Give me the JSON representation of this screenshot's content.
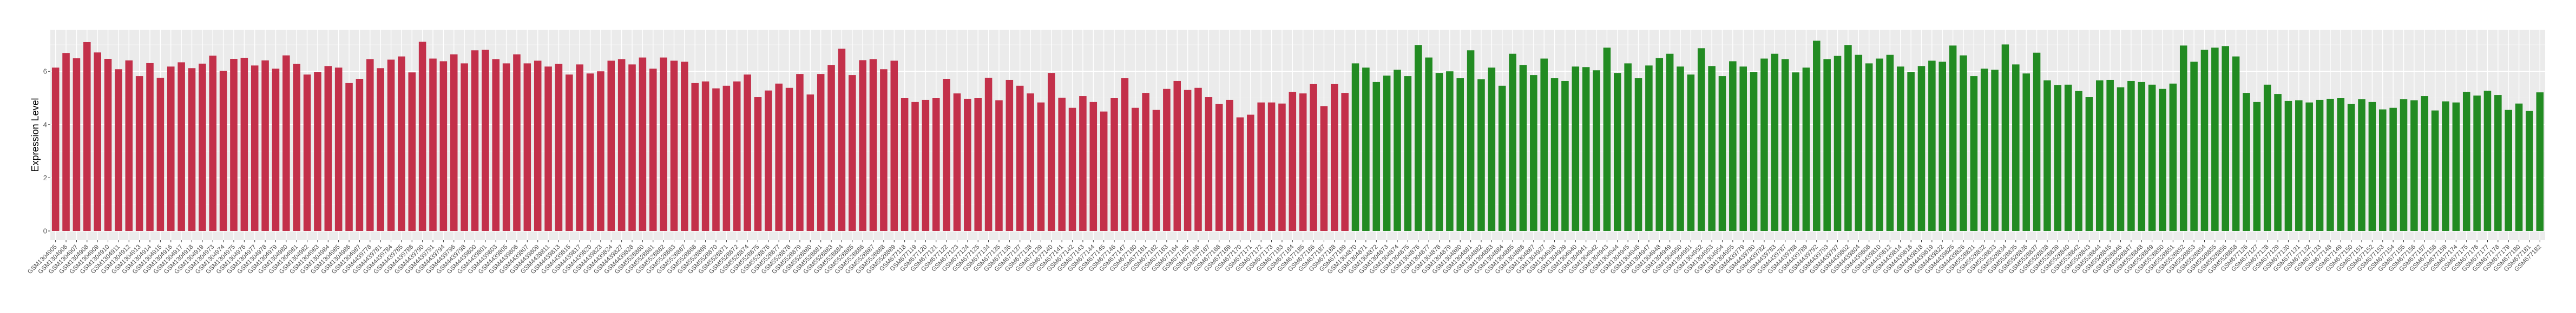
{
  "chart_data": {
    "type": "bar",
    "title": "",
    "xlabel": "",
    "ylabel": "Expression Level",
    "ylim": [
      0,
      7.55
    ],
    "yticks": [
      0,
      2,
      4,
      6
    ],
    "grid": true,
    "panel_background": "#EBEBEB",
    "series": [
      {
        "color": "#C3304A",
        "categories": [
          "GSM1304905",
          "GSM1304906",
          "GSM1304907",
          "GSM1304908",
          "GSM1304909",
          "GSM1304910",
          "GSM1304911",
          "GSM1304912",
          "GSM1304913",
          "GSM1304914",
          "GSM1304915",
          "GSM1304916",
          "GSM1304917",
          "GSM1304918",
          "GSM1304919",
          "GSM1304973",
          "GSM1304974",
          "GSM1304975",
          "GSM1304976",
          "GSM1304977",
          "GSM1304978",
          "GSM1304979",
          "GSM1304980",
          "GSM1304981",
          "GSM1304982",
          "GSM1304983",
          "GSM1304984",
          "GSM1304985",
          "GSM1304986",
          "GSM1304987",
          "GSM4439778",
          "GSM4439781",
          "GSM4439784",
          "GSM4439785",
          "GSM4439786",
          "GSM4439790",
          "GSM4439791",
          "GSM4439794",
          "GSM4439796",
          "GSM4439798",
          "GSM4439800",
          "GSM4439801",
          "GSM4439803",
          "GSM4439805",
          "GSM4439806",
          "GSM4439807",
          "GSM4439809",
          "GSM4439811",
          "GSM4439813",
          "GSM4439815",
          "GSM4439817",
          "GSM4439820",
          "GSM4439823",
          "GSM4439824",
          "GSM4439827",
          "GSM4439828",
          "GSM5528860",
          "GSM5528861",
          "GSM5528862",
          "GSM5528863",
          "GSM5528867",
          "GSM5528868",
          "GSM5528869",
          "GSM5528870",
          "GSM5528871",
          "GSM5528872",
          "GSM5528874",
          "GSM5528875",
          "GSM5528876",
          "GSM5528877",
          "GSM5528878",
          "GSM5528879",
          "GSM5528880",
          "GSM5528881",
          "GSM5528883",
          "GSM5528884",
          "GSM5528885",
          "GSM5528886",
          "GSM5528887",
          "GSM5528888",
          "GSM5528889",
          "GSM677118",
          "GSM677119",
          "GSM677120",
          "GSM677121",
          "GSM677122",
          "GSM677123",
          "GSM677124",
          "GSM677125",
          "GSM677134",
          "GSM677135",
          "GSM677136",
          "GSM677137",
          "GSM677138",
          "GSM677139",
          "GSM677140",
          "GSM677141",
          "GSM677142",
          "GSM677143",
          "GSM677144",
          "GSM677145",
          "GSM677146",
          "GSM677147",
          "GSM677160",
          "GSM677161",
          "GSM677162",
          "GSM677163",
          "GSM677164",
          "GSM677165",
          "GSM677166",
          "GSM677167",
          "GSM677168",
          "GSM677169",
          "GSM677170",
          "GSM677171",
          "GSM677172",
          "GSM677173",
          "GSM677183",
          "GSM677184",
          "GSM677185",
          "GSM677186",
          "GSM677187",
          "GSM677188",
          "GSM677189"
        ],
        "values": [
          6.14,
          6.69,
          6.49,
          7.1,
          6.71,
          6.47,
          6.08,
          6.41,
          5.82,
          6.31,
          5.76,
          6.18,
          6.34,
          6.12,
          6.29,
          6.59,
          6.02,
          6.47,
          6.51,
          6.22,
          6.41,
          6.1,
          6.6,
          6.28,
          5.88,
          5.98,
          6.2,
          6.14,
          5.56,
          5.72,
          6.46,
          6.12,
          6.44,
          6.56,
          5.96,
          7.11,
          6.48,
          6.38,
          6.64,
          6.3,
          6.79,
          6.81,
          6.46,
          6.3,
          6.64,
          6.3,
          6.4,
          6.18,
          6.28,
          5.88,
          6.26,
          5.92,
          6.0,
          6.4,
          6.46,
          6.26,
          6.52,
          6.1,
          6.52,
          6.4,
          6.36,
          5.56,
          5.62,
          5.36,
          5.46,
          5.62,
          5.88,
          5.03,
          5.28,
          5.54,
          5.38,
          5.9,
          5.13,
          5.9,
          6.24,
          6.85,
          5.86,
          6.42,
          6.46,
          6.08,
          6.4,
          4.99,
          4.85,
          4.93,
          4.99,
          5.72,
          5.17,
          4.97,
          4.99,
          5.76,
          4.91,
          5.68,
          5.46,
          5.17,
          4.83,
          5.94,
          5.01,
          4.63,
          5.07,
          4.85,
          4.49,
          4.99,
          5.74,
          4.63,
          5.19,
          4.55,
          5.34,
          5.64,
          5.3,
          5.38,
          5.03,
          4.77,
          4.93,
          4.27,
          4.37,
          4.83,
          4.83,
          4.79,
          5.23,
          5.17,
          5.52,
          4.69,
          5.52,
          5.19
        ]
      },
      {
        "color": "#228B22",
        "categories": [
          "GSM1304870",
          "GSM1304871",
          "GSM1304872",
          "GSM1304873",
          "GSM1304874",
          "GSM1304875",
          "GSM1304876",
          "GSM1304877",
          "GSM1304878",
          "GSM1304879",
          "GSM1304880",
          "GSM1304881",
          "GSM1304882",
          "GSM1304883",
          "GSM1304884",
          "GSM1304885",
          "GSM1304886",
          "GSM1304887",
          "GSM1304937",
          "GSM1304938",
          "GSM1304939",
          "GSM1304940",
          "GSM1304941",
          "GSM1304942",
          "GSM1304943",
          "GSM1304944",
          "GSM1304945",
          "GSM1304946",
          "GSM1304947",
          "GSM1304948",
          "GSM1304949",
          "GSM1304950",
          "GSM1304951",
          "GSM1304952",
          "GSM1304953",
          "GSM1304954",
          "GSM1304955",
          "GSM4439779",
          "GSM4439780",
          "GSM4439782",
          "GSM4439783",
          "GSM4439787",
          "GSM4439788",
          "GSM4439789",
          "GSM4439792",
          "GSM4439793",
          "GSM4439797",
          "GSM4439802",
          "GSM4439804",
          "GSM4439808",
          "GSM4439810",
          "GSM4439812",
          "GSM4439814",
          "GSM4439816",
          "GSM4439818",
          "GSM4439819",
          "GSM4439822",
          "GSM4439825",
          "GSM4439826",
          "GSM5528831",
          "GSM5528832",
          "GSM5528833",
          "GSM5528834",
          "GSM5528835",
          "GSM5528836",
          "GSM5528837",
          "GSM5528838",
          "GSM5528839",
          "GSM5528840",
          "GSM5528842",
          "GSM5528843",
          "GSM5528844",
          "GSM5528845",
          "GSM5528846",
          "GSM5528847",
          "GSM5528848",
          "GSM5528849",
          "GSM5528850",
          "GSM5528851",
          "GSM5528852",
          "GSM5528853",
          "GSM5528854",
          "GSM5528855",
          "GSM5528856",
          "GSM5528858",
          "GSM677126",
          "GSM677127",
          "GSM677128",
          "GSM677129",
          "GSM677130",
          "GSM677131",
          "GSM677132",
          "GSM677133",
          "GSM677148",
          "GSM677149",
          "GSM677150",
          "GSM677151",
          "GSM677152",
          "GSM677153",
          "GSM677154",
          "GSM677155",
          "GSM677156",
          "GSM677157",
          "GSM677158",
          "GSM677159",
          "GSM677174",
          "GSM677175",
          "GSM677176",
          "GSM677177",
          "GSM677178",
          "GSM677179",
          "GSM677180",
          "GSM677181",
          "GSM677182"
        ],
        "values": [
          6.3,
          6.14,
          5.6,
          5.84,
          6.06,
          5.82,
          6.99,
          6.52,
          5.94,
          6.0,
          5.74,
          6.79,
          5.7,
          6.14,
          5.46,
          6.66,
          6.24,
          5.86,
          6.48,
          5.74,
          5.64,
          6.18,
          6.16,
          6.04,
          6.89,
          5.94,
          6.3,
          5.74,
          6.22,
          6.5,
          6.66,
          6.18,
          5.88,
          6.87,
          6.2,
          5.82,
          6.38,
          6.18,
          5.98,
          6.48,
          6.66,
          6.46,
          5.96,
          6.14,
          7.15,
          6.46,
          6.58,
          6.99,
          6.62,
          6.3,
          6.48,
          6.62,
          6.18,
          5.98,
          6.2,
          6.4,
          6.36,
          6.97,
          6.6,
          5.82,
          6.1,
          6.06,
          7.01,
          6.26,
          5.92,
          6.7,
          5.66,
          5.48,
          5.5,
          5.26,
          5.03,
          5.66,
          5.68,
          5.4,
          5.64,
          5.6,
          5.5,
          5.34,
          5.54,
          6.97,
          6.36,
          6.81,
          6.89,
          6.95,
          6.56,
          5.19,
          4.85,
          5.5,
          5.15,
          4.89,
          4.91,
          4.83,
          4.93,
          4.97,
          4.99,
          4.77,
          4.95,
          4.85,
          4.57,
          4.63,
          4.95,
          4.91,
          5.07,
          4.53,
          4.87,
          4.83,
          5.23,
          5.09,
          5.27,
          5.11,
          4.55,
          4.79,
          4.51,
          5.21
        ]
      }
    ]
  }
}
